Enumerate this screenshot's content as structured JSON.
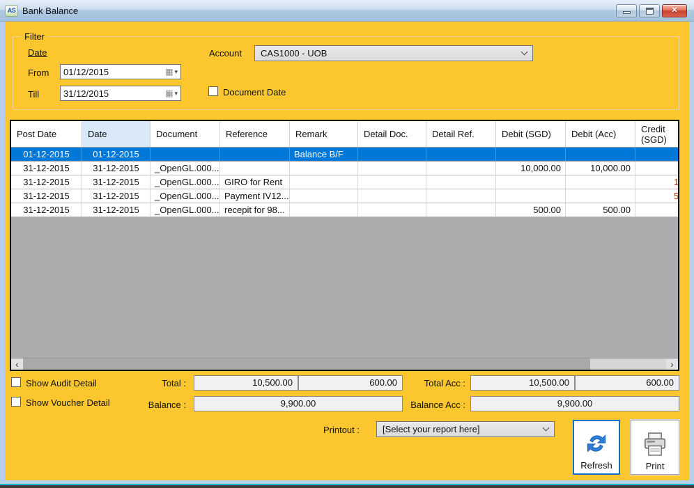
{
  "window": {
    "title": "Bank Balance",
    "icon_text": "AS"
  },
  "icons": {
    "calendar": "▦",
    "dropdown_arrow": "▾",
    "close": "✕",
    "scroll_left": "‹",
    "scroll_right": "›"
  },
  "filter": {
    "legend": "Filter",
    "date_label": "Date",
    "from_label": "From",
    "from_value": "01/12/2015",
    "till_label": "Till",
    "till_value": "31/12/2015",
    "account_label": "Account",
    "account_value": "CAS1000 - UOB",
    "document_date_label": "Document Date"
  },
  "grid": {
    "columns": [
      "Post Date",
      "Date",
      "Document",
      "Reference",
      "Remark",
      "Detail Doc.",
      "Detail Ref.",
      "Debit (SGD)",
      "Debit (Acc)",
      "Credit (SGD)"
    ],
    "sorted_column": "Date",
    "rows": [
      {
        "post_date": "01-12-2015",
        "date": "01-12-2015",
        "document": "",
        "reference": "",
        "remark": "Balance B/F",
        "detail_doc": "",
        "detail_ref": "",
        "debit_sgd": "",
        "debit_acc": "",
        "credit_sgd": "",
        "selected": true
      },
      {
        "post_date": "31-12-2015",
        "date": "31-12-2015",
        "document": "_OpenGL.000...",
        "reference": "",
        "remark": "",
        "detail_doc": "",
        "detail_ref": "",
        "debit_sgd": "10,000.00",
        "debit_acc": "10,000.00",
        "credit_sgd": ""
      },
      {
        "post_date": "31-12-2015",
        "date": "31-12-2015",
        "document": "_OpenGL.000...",
        "reference": "GIRO for Rent",
        "remark": "",
        "detail_doc": "",
        "detail_ref": "",
        "debit_sgd": "",
        "debit_acc": "",
        "credit_sgd": "1",
        "credit_clipped": true
      },
      {
        "post_date": "31-12-2015",
        "date": "31-12-2015",
        "document": "_OpenGL.000...",
        "reference": "Payment IV12...",
        "remark": "",
        "detail_doc": "",
        "detail_ref": "",
        "debit_sgd": "",
        "debit_acc": "",
        "credit_sgd": "5",
        "credit_clipped": true
      },
      {
        "post_date": "31-12-2015",
        "date": "31-12-2015",
        "document": "_OpenGL.000...",
        "reference": "recepit for 98...",
        "remark": "",
        "detail_doc": "",
        "detail_ref": "",
        "debit_sgd": "500.00",
        "debit_acc": "500.00",
        "credit_sgd": ""
      }
    ]
  },
  "summary": {
    "show_audit_label": "Show Audit Detail",
    "show_voucher_label": "Show Voucher Detail",
    "total_label": "Total :",
    "total_values": [
      "10,500.00",
      "600.00"
    ],
    "total_acc_label": "Total Acc :",
    "total_acc_values": [
      "10,500.00",
      "600.00"
    ],
    "balance_label": "Balance :",
    "balance_value": "9,900.00",
    "balance_acc_label": "Balance Acc :",
    "balance_acc_value": "9,900.00"
  },
  "printout": {
    "label": "Printout :",
    "value": "[Select your report here]"
  },
  "actions": {
    "refresh_label": "Refresh",
    "print_label": "Print"
  }
}
